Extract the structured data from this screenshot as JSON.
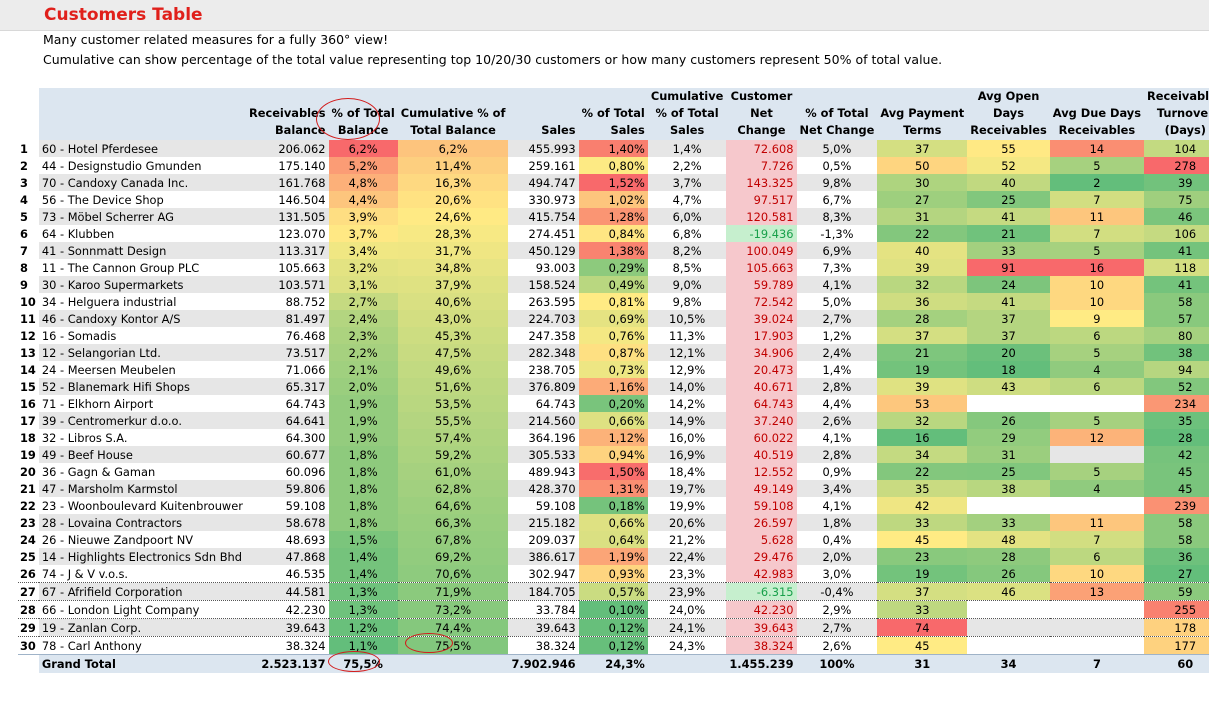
{
  "title": "Customers Table",
  "subtitle1": "Many customer related measures for a fully 360° view!",
  "subtitle2": "Cumulative can show percentage of the total value representing top 10/20/30 customers or how many customers represent 50% of total value.",
  "headers": {
    "balance": [
      "Receivables",
      "Balance"
    ],
    "pct_total": [
      "% of Total",
      "Balance"
    ],
    "cumulative": [
      "Cumulative % of",
      "Total Balance"
    ],
    "sales": [
      "Sales"
    ],
    "pct_sales": [
      "% of Total",
      "Sales"
    ],
    "cum_sales": [
      "Cumulative",
      "% of Total",
      "Sales"
    ],
    "net_change": [
      "Customer",
      "Net",
      "Change"
    ],
    "pct_net": [
      "% of Total",
      "Net Change"
    ],
    "pay_terms": [
      "Avg Payment",
      "Terms"
    ],
    "open_days": [
      "Avg Open",
      "Days",
      "Receivables"
    ],
    "due_days": [
      "Avg Due Days",
      "Receivables"
    ],
    "turnover": [
      "Receivables",
      "Turnover",
      "(Days)"
    ]
  },
  "colors": {
    "header_bg": "#dce6f0",
    "grey_row": "#e6e6e6",
    "title": "#e0201b",
    "neg_text": "#18a04a",
    "neg_bg": "#c6efce",
    "net_text": "#c00000",
    "net_bg": "#f6c8cc",
    "annotation": "#d21b1b"
  },
  "rows": [
    [
      "1",
      "60 - Hotel Pferdesee",
      "206.062",
      "6,2%",
      "6,2%",
      "455.993",
      "1,40%",
      "1,4%",
      "72.608",
      "5,0%",
      "37",
      "55",
      "14",
      "104"
    ],
    [
      "2",
      "44 - Designstudio Gmunden",
      "175.140",
      "5,2%",
      "11,4%",
      "259.161",
      "0,80%",
      "2,2%",
      "7.726",
      "0,5%",
      "50",
      "52",
      "5",
      "278"
    ],
    [
      "3",
      "70 - Candoxy Canada Inc.",
      "161.768",
      "4,8%",
      "16,3%",
      "494.747",
      "1,52%",
      "3,7%",
      "143.325",
      "9,8%",
      "30",
      "40",
      "2",
      "39"
    ],
    [
      "4",
      "56 - The Device Shop",
      "146.504",
      "4,4%",
      "20,6%",
      "330.973",
      "1,02%",
      "4,7%",
      "97.517",
      "6,7%",
      "27",
      "25",
      "7",
      "75"
    ],
    [
      "5",
      "73 - Möbel Scherrer AG",
      "131.505",
      "3,9%",
      "24,6%",
      "415.754",
      "1,28%",
      "6,0%",
      "120.581",
      "8,3%",
      "31",
      "41",
      "11",
      "46"
    ],
    [
      "6",
      "64 - Klubben",
      "123.070",
      "3,7%",
      "28,3%",
      "274.451",
      "0,84%",
      "6,8%",
      "-19.436",
      "-1,3%",
      "22",
      "21",
      "7",
      "106"
    ],
    [
      "7",
      "41 - Sonnmatt Design",
      "113.317",
      "3,4%",
      "31,7%",
      "450.129",
      "1,38%",
      "8,2%",
      "100.049",
      "6,9%",
      "40",
      "33",
      "5",
      "41"
    ],
    [
      "8",
      "11 - The Cannon Group PLC",
      "105.663",
      "3,2%",
      "34,8%",
      "93.003",
      "0,29%",
      "8,5%",
      "105.663",
      "7,3%",
      "39",
      "91",
      "16",
      "118"
    ],
    [
      "9",
      "30 - Karoo Supermarkets",
      "103.571",
      "3,1%",
      "37,9%",
      "158.524",
      "0,49%",
      "9,0%",
      "59.789",
      "4,1%",
      "32",
      "24",
      "10",
      "41"
    ],
    [
      "10",
      "34 - Helguera industrial",
      "88.752",
      "2,7%",
      "40,6%",
      "263.595",
      "0,81%",
      "9,8%",
      "72.542",
      "5,0%",
      "36",
      "41",
      "10",
      "58"
    ],
    [
      "11",
      "46 - Candoxy Kontor A/S",
      "81.497",
      "2,4%",
      "43,0%",
      "224.703",
      "0,69%",
      "10,5%",
      "39.024",
      "2,7%",
      "28",
      "37",
      "9",
      "57"
    ],
    [
      "12",
      "16 - Somadis",
      "76.468",
      "2,3%",
      "45,3%",
      "247.358",
      "0,76%",
      "11,3%",
      "17.903",
      "1,2%",
      "37",
      "37",
      "6",
      "80"
    ],
    [
      "13",
      "12 - Selangorian Ltd.",
      "73.517",
      "2,2%",
      "47,5%",
      "282.348",
      "0,87%",
      "12,1%",
      "34.906",
      "2,4%",
      "21",
      "20",
      "5",
      "38"
    ],
    [
      "14",
      "24 - Meersen Meubelen",
      "71.066",
      "2,1%",
      "49,6%",
      "238.705",
      "0,73%",
      "12,9%",
      "20.473",
      "1,4%",
      "19",
      "18",
      "4",
      "94"
    ],
    [
      "15",
      "52 - Blanemark Hifi Shops",
      "65.317",
      "2,0%",
      "51,6%",
      "376.809",
      "1,16%",
      "14,0%",
      "40.671",
      "2,8%",
      "39",
      "43",
      "6",
      "52"
    ],
    [
      "16",
      "71 - Elkhorn Airport",
      "64.743",
      "1,9%",
      "53,5%",
      "64.743",
      "0,20%",
      "14,2%",
      "64.743",
      "4,4%",
      "53",
      "",
      "",
      "234"
    ],
    [
      "17",
      "39 - Centromerkur d.o.o.",
      "64.641",
      "1,9%",
      "55,5%",
      "214.560",
      "0,66%",
      "14,9%",
      "37.240",
      "2,6%",
      "32",
      "26",
      "5",
      "35"
    ],
    [
      "18",
      "32 - Libros S.A.",
      "64.300",
      "1,9%",
      "57,4%",
      "364.196",
      "1,12%",
      "16,0%",
      "60.022",
      "4,1%",
      "16",
      "29",
      "12",
      "28"
    ],
    [
      "19",
      "49 - Beef House",
      "60.677",
      "1,8%",
      "59,2%",
      "305.533",
      "0,94%",
      "16,9%",
      "40.519",
      "2,8%",
      "34",
      "31",
      "",
      "42"
    ],
    [
      "20",
      "36 - Gagn & Gaman",
      "60.096",
      "1,8%",
      "61,0%",
      "489.943",
      "1,50%",
      "18,4%",
      "12.552",
      "0,9%",
      "22",
      "25",
      "5",
      "45"
    ],
    [
      "21",
      "47 - Marsholm Karmstol",
      "59.806",
      "1,8%",
      "62,8%",
      "428.370",
      "1,31%",
      "19,7%",
      "49.149",
      "3,4%",
      "35",
      "38",
      "4",
      "45"
    ],
    [
      "22",
      "23 - Woonboulevard Kuitenbrouwer",
      "59.108",
      "1,8%",
      "64,6%",
      "59.108",
      "0,18%",
      "19,9%",
      "59.108",
      "4,1%",
      "42",
      "",
      "",
      "239"
    ],
    [
      "23",
      "28 - Lovaina Contractors",
      "58.678",
      "1,8%",
      "66,3%",
      "215.182",
      "0,66%",
      "20,6%",
      "26.597",
      "1,8%",
      "33",
      "33",
      "11",
      "58"
    ],
    [
      "24",
      "26 - Nieuwe Zandpoort NV",
      "48.693",
      "1,5%",
      "67,8%",
      "209.037",
      "0,64%",
      "21,2%",
      "5.628",
      "0,4%",
      "45",
      "48",
      "7",
      "58"
    ],
    [
      "25",
      "14 - Highlights Electronics Sdn Bhd",
      "47.868",
      "1,4%",
      "69,2%",
      "386.617",
      "1,19%",
      "22,4%",
      "29.476",
      "2,0%",
      "23",
      "28",
      "6",
      "36"
    ],
    [
      "26",
      "74 - J & V v.o.s.",
      "46.535",
      "1,4%",
      "70,6%",
      "302.947",
      "0,93%",
      "23,3%",
      "42.983",
      "3,0%",
      "19",
      "26",
      "10",
      "27"
    ],
    [
      "27",
      "67 - Afrifield Corporation",
      "44.581",
      "1,3%",
      "71,9%",
      "184.705",
      "0,57%",
      "23,9%",
      "-6.315",
      "-0,4%",
      "37",
      "46",
      "13",
      "59"
    ],
    [
      "28",
      "66 - London Light Company",
      "42.230",
      "1,3%",
      "73,2%",
      "33.784",
      "0,10%",
      "24,0%",
      "42.230",
      "2,9%",
      "33",
      "",
      "",
      "255"
    ],
    [
      "29",
      "19 - Zanlan Corp.",
      "39.643",
      "1,2%",
      "74,4%",
      "39.643",
      "0,12%",
      "24,1%",
      "39.643",
      "2,7%",
      "74",
      "",
      "",
      "178"
    ],
    [
      "30",
      "78 - Carl Anthony",
      "38.324",
      "1,1%",
      "75,5%",
      "38.324",
      "0,12%",
      "24,3%",
      "38.324",
      "2,6%",
      "45",
      "",
      "",
      "177"
    ]
  ],
  "grand_total": {
    "label": "Grand Total",
    "balance": "2.523.137",
    "pct_total": "75,5%",
    "cumulative": "",
    "sales": "7.902.946",
    "pct_sales": "24,3%",
    "cum_sales": "",
    "net_change": "1.455.239",
    "pct_net": "100%",
    "pay_terms": "31",
    "open_days": "34",
    "due_days": "7",
    "turnover": "60"
  }
}
